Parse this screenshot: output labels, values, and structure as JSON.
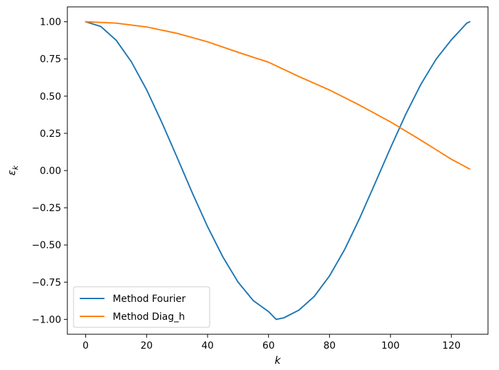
{
  "chart_data": {
    "type": "line",
    "xlabel": "k",
    "ylabel_main": "ε",
    "ylabel_sub": "k",
    "xlim": [
      -6,
      132
    ],
    "ylim": [
      -1.1,
      1.1
    ],
    "xticks": [
      0,
      20,
      40,
      60,
      80,
      100,
      120
    ],
    "xtick_labels": [
      "0",
      "20",
      "40",
      "60",
      "80",
      "100",
      "120"
    ],
    "yticks": [
      1.0,
      0.75,
      0.5,
      0.25,
      0.0,
      -0.25,
      -0.5,
      -0.75,
      -1.0
    ],
    "ytick_labels": [
      "1.00",
      "0.75",
      "0.50",
      "0.25",
      "0.00",
      "−0.25",
      "−0.50",
      "−0.75",
      "−1.00"
    ],
    "grid": false,
    "legend_position": "lower-left",
    "series": [
      {
        "name": "Method Fourier",
        "color": "#1f77b4",
        "x": [
          0,
          5,
          10,
          15,
          20,
          25,
          30,
          35,
          40,
          45,
          50,
          55,
          60,
          62.5,
          65,
          70,
          75,
          80,
          85,
          90,
          95,
          100,
          105,
          110,
          115,
          120,
          125,
          126
        ],
        "y": [
          1.0,
          0.968,
          0.876,
          0.731,
          0.543,
          0.323,
          0.088,
          -0.15,
          -0.377,
          -0.58,
          -0.749,
          -0.874,
          -0.948,
          -1.0,
          -0.99,
          -0.938,
          -0.846,
          -0.708,
          -0.529,
          -0.316,
          -0.083,
          0.152,
          0.378,
          0.58,
          0.749,
          0.879,
          0.99,
          1.0
        ]
      },
      {
        "name": "Method Diag_h",
        "color": "#ff7f0e",
        "x": [
          0,
          10,
          20,
          30,
          40,
          50,
          60,
          70,
          80,
          90,
          100,
          110,
          120,
          126
        ],
        "y": [
          1.0,
          0.991,
          0.965,
          0.922,
          0.865,
          0.795,
          0.728,
          0.632,
          0.541,
          0.438,
          0.327,
          0.204,
          0.076,
          0.01
        ]
      }
    ]
  }
}
